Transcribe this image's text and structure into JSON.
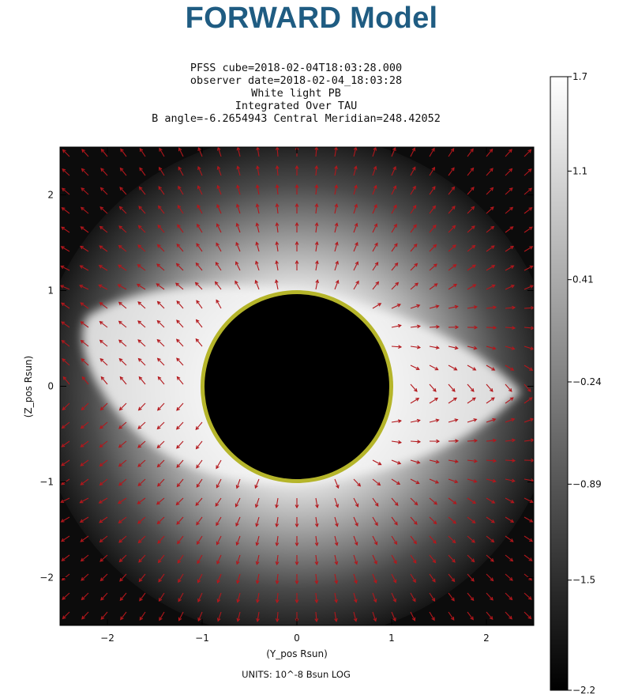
{
  "heading": "FORWARD Model",
  "title_lines": [
    "PFSS cube=2018-02-04T18:03:28.000",
    "observer date=2018-02-04_18:03:28",
    "White light PB",
    "Integrated Over TAU",
    "B angle=-6.2654943 Central Meridian=248.42052"
  ],
  "units_label": "UNITS: 10^-8 Bsun LOG",
  "colors": {
    "heading": "#1f5c82",
    "vectors": "#b3171c",
    "limb_ring": "#b5b52a",
    "occulter": "#000000"
  },
  "chart_data": {
    "type": "heatmap",
    "description_of_overlay": "vector field arrows",
    "xlabel": "(Y_pos Rsun)",
    "ylabel": "(Z_pos Rsun)",
    "xlim": [
      -2.5,
      2.5
    ],
    "ylim": [
      -2.5,
      2.5
    ],
    "xticks": [
      -2,
      -1,
      0,
      1,
      2
    ],
    "yticks": [
      -2,
      -1,
      0,
      1,
      2
    ],
    "occulter_radius_rsun": 1.0,
    "colorbar": {
      "min": -2.2,
      "max": 1.7,
      "ticks": [
        1.7,
        1.1,
        0.41,
        -0.24,
        -0.89,
        -1.5,
        -2.2
      ],
      "tick_labels": [
        "1.7",
        "1.1",
        "0.41",
        "−0.24",
        "−0.89",
        "−1.5",
        "−2.2"
      ],
      "colormap": "grayscale"
    }
  }
}
